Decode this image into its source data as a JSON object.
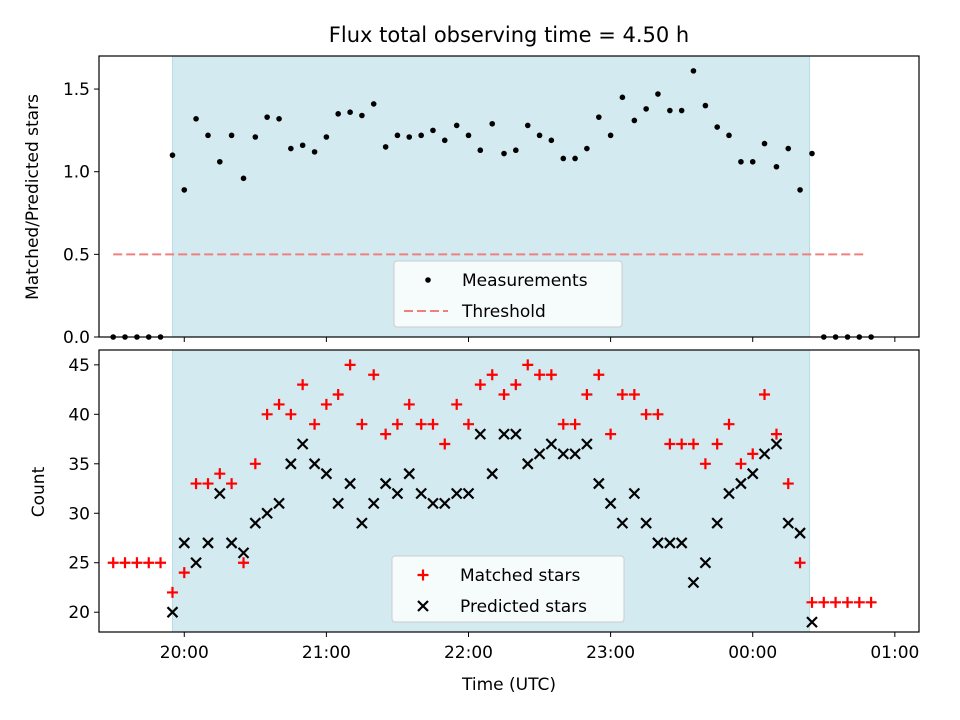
{
  "figure": {
    "title": "Flux total observing time = 4.50 h",
    "xlabel": "Time (UTC)",
    "x_ticks": [
      "20:00",
      "21:00",
      "22:00",
      "23:00",
      "00:00",
      "01:00"
    ]
  },
  "colors": {
    "shade": "#d3eaf0",
    "threshold": "#f08080",
    "matched": "#ff0000",
    "predicted": "#000000",
    "measurement": "#000000"
  },
  "chart_data": [
    {
      "type": "scatter",
      "panel": "top",
      "ylabel": "Matched/Predicted stars",
      "xlim": [
        -0.6,
        5.17
      ],
      "ylim": [
        0,
        1.7
      ],
      "y_ticks": [
        "0.0",
        "0.5",
        "1.0",
        "1.5"
      ],
      "y_tick_values": [
        0,
        0.5,
        1.0,
        1.5
      ],
      "shaded_range": [
        -0.083,
        4.4
      ],
      "threshold": {
        "y": 0.5,
        "x_range": [
          -0.5,
          4.8
        ]
      },
      "legend": [
        "Measurements",
        "Threshold"
      ],
      "legend_position": "lower center",
      "x_hours": [
        -0.5,
        -0.417,
        -0.333,
        -0.25,
        -0.167,
        -0.083,
        0.0,
        0.083,
        0.167,
        0.25,
        0.333,
        0.417,
        0.5,
        0.583,
        0.667,
        0.75,
        0.833,
        0.917,
        1.0,
        1.083,
        1.167,
        1.25,
        1.333,
        1.417,
        1.5,
        1.583,
        1.667,
        1.75,
        1.833,
        1.917,
        2.0,
        2.083,
        2.167,
        2.25,
        2.333,
        2.417,
        2.5,
        2.583,
        2.667,
        2.75,
        2.833,
        2.917,
        3.0,
        3.083,
        3.167,
        3.25,
        3.333,
        3.417,
        3.5,
        3.583,
        3.667,
        3.75,
        3.833,
        3.917,
        4.0,
        4.083,
        4.167,
        4.25,
        4.333,
        4.417,
        4.5,
        4.583,
        4.667,
        4.75,
        4.833
      ],
      "values": [
        0.0,
        0.0,
        0.0,
        0.0,
        0.0,
        1.1,
        0.89,
        1.32,
        1.22,
        1.06,
        1.22,
        0.96,
        1.21,
        1.33,
        1.32,
        1.14,
        1.16,
        1.12,
        1.21,
        1.35,
        1.36,
        1.34,
        1.41,
        1.15,
        1.22,
        1.21,
        1.22,
        1.25,
        1.19,
        1.28,
        1.22,
        1.13,
        1.29,
        1.11,
        1.13,
        1.28,
        1.22,
        1.19,
        1.08,
        1.08,
        1.14,
        1.33,
        1.22,
        1.45,
        1.31,
        1.38,
        1.47,
        1.37,
        1.37,
        1.61,
        1.4,
        1.27,
        1.22,
        1.06,
        1.06,
        1.17,
        1.03,
        1.14,
        0.89,
        1.11,
        0.0,
        0.0,
        0.0,
        0.0,
        0.0
      ]
    },
    {
      "type": "scatter",
      "panel": "bottom",
      "ylabel": "Count",
      "xlim": [
        -0.6,
        5.17
      ],
      "ylim": [
        18,
        46.5
      ],
      "y_ticks": [
        "20",
        "25",
        "30",
        "35",
        "40",
        "45"
      ],
      "y_tick_values": [
        20,
        25,
        30,
        35,
        40,
        45
      ],
      "shaded_range": [
        -0.083,
        4.4
      ],
      "legend": [
        "Matched stars",
        "Predicted stars"
      ],
      "legend_position": "lower center",
      "series": [
        {
          "name": "Matched stars",
          "marker": "+",
          "x_hours": [
            -0.5,
            -0.417,
            -0.333,
            -0.25,
            -0.167,
            -0.083,
            0.0,
            0.083,
            0.167,
            0.25,
            0.333,
            0.417,
            0.5,
            0.583,
            0.667,
            0.75,
            0.833,
            0.917,
            1.0,
            1.083,
            1.167,
            1.25,
            1.333,
            1.417,
            1.5,
            1.583,
            1.667,
            1.75,
            1.833,
            1.917,
            2.0,
            2.083,
            2.167,
            2.25,
            2.333,
            2.417,
            2.5,
            2.583,
            2.667,
            2.75,
            2.833,
            2.917,
            3.0,
            3.083,
            3.167,
            3.25,
            3.333,
            3.417,
            3.5,
            3.583,
            3.667,
            3.75,
            3.833,
            3.917,
            4.0,
            4.083,
            4.167,
            4.25,
            4.333,
            4.417,
            4.5,
            4.583,
            4.667,
            4.75,
            4.833
          ],
          "values": [
            25,
            25,
            25,
            25,
            25,
            22,
            24,
            33,
            33,
            34,
            33,
            25,
            35,
            40,
            41,
            40,
            43,
            39,
            41,
            42,
            45,
            39,
            44,
            38,
            39,
            41,
            39,
            39,
            37,
            41,
            39,
            43,
            44,
            42,
            43,
            45,
            44,
            44,
            39,
            39,
            42,
            44,
            38,
            42,
            42,
            40,
            40,
            37,
            37,
            37,
            35,
            37,
            39,
            35,
            36,
            42,
            38,
            33,
            25,
            21,
            21,
            21,
            21,
            21,
            21
          ]
        },
        {
          "name": "Predicted stars",
          "marker": "x",
          "x_hours": [
            -0.083,
            0.0,
            0.083,
            0.167,
            0.25,
            0.333,
            0.417,
            0.5,
            0.583,
            0.667,
            0.75,
            0.833,
            0.917,
            1.0,
            1.083,
            1.167,
            1.25,
            1.333,
            1.417,
            1.5,
            1.583,
            1.667,
            1.75,
            1.833,
            1.917,
            2.0,
            2.083,
            2.167,
            2.25,
            2.333,
            2.417,
            2.5,
            2.583,
            2.667,
            2.75,
            2.833,
            2.917,
            3.0,
            3.083,
            3.167,
            3.25,
            3.333,
            3.417,
            3.5,
            3.583,
            3.667,
            3.75,
            3.833,
            3.917,
            4.0,
            4.083,
            4.167,
            4.25,
            4.333,
            4.417
          ],
          "values": [
            20,
            27,
            25,
            27,
            32,
            27,
            26,
            29,
            30,
            31,
            35,
            37,
            35,
            34,
            31,
            33,
            29,
            31,
            33,
            32,
            34,
            32,
            31,
            31,
            32,
            32,
            38,
            34,
            38,
            38,
            35,
            36,
            37,
            36,
            36,
            37,
            33,
            31,
            29,
            32,
            29,
            27,
            27,
            27,
            23,
            25,
            29,
            32,
            33,
            34,
            36,
            37,
            29,
            28,
            19
          ]
        }
      ]
    }
  ]
}
